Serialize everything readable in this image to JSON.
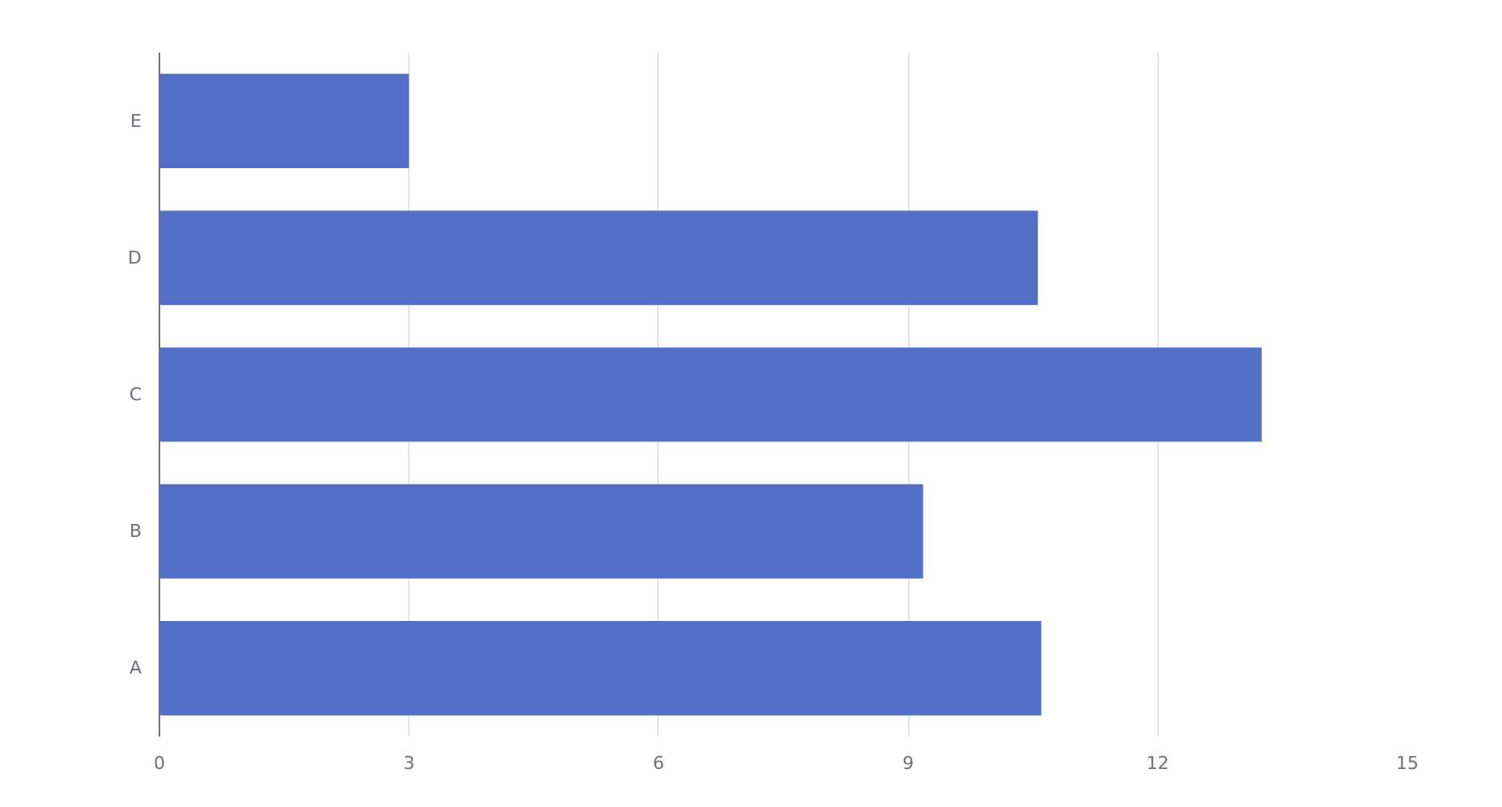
{
  "chart_data": {
    "type": "bar",
    "orientation": "horizontal",
    "categories": [
      "E",
      "D",
      "C",
      "B",
      "A"
    ],
    "values": [
      3.0,
      10.56,
      13.25,
      9.18,
      10.6
    ],
    "color": "#5470c6",
    "xlim": [
      0,
      15
    ],
    "xticks": [
      0,
      3,
      6,
      9,
      12,
      15
    ],
    "grid": "x"
  }
}
